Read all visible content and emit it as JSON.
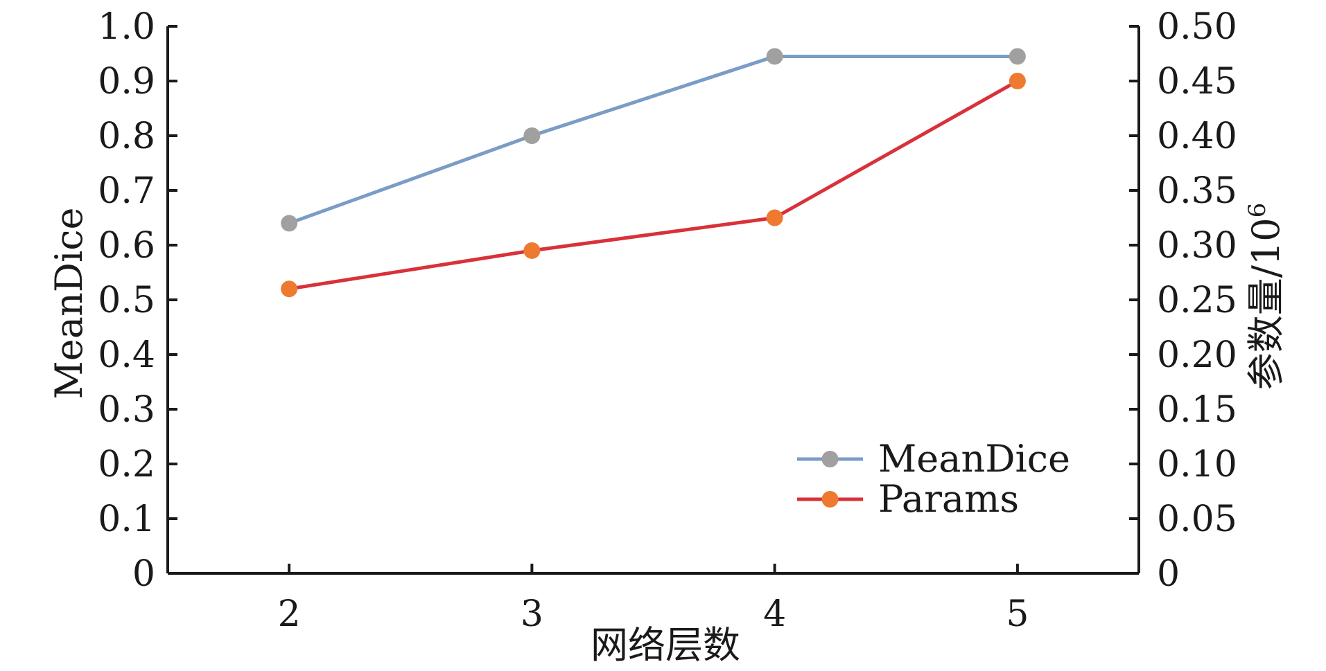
{
  "chart_data": {
    "type": "line",
    "title": "",
    "xlabel": "网络层数",
    "ylabel": "MeanDice",
    "y2label": "参数量/10",
    "y2label_sup": "6",
    "categories": [
      "2",
      "3",
      "4",
      "5"
    ],
    "x": [
      2,
      3,
      4,
      5
    ],
    "xlim": [
      1.5,
      5.5
    ],
    "ylim": [
      0,
      1.0
    ],
    "y2lim": [
      0,
      0.5
    ],
    "yticks": [
      "0",
      "0.1",
      "0.2",
      "0.3",
      "0.4",
      "0.5",
      "0.6",
      "0.7",
      "0.8",
      "0.9",
      "1.0"
    ],
    "y2ticks": [
      "0",
      "0.05",
      "0.10",
      "0.15",
      "0.20",
      "0.25",
      "0.30",
      "0.35",
      "0.40",
      "0.45",
      "0.50"
    ],
    "grid": false,
    "legend_position": "bottom-right",
    "series": [
      {
        "name": "MeanDice",
        "axis": "left",
        "values": [
          0.64,
          0.8,
          0.945,
          0.945
        ],
        "line_color": "#7a9cc6",
        "marker_color": "#a0a0a0"
      },
      {
        "name": "Params",
        "axis": "right",
        "values": [
          0.26,
          0.295,
          0.325,
          0.45
        ],
        "line_color": "#d9313a",
        "marker_color": "#ee7a30"
      }
    ]
  }
}
